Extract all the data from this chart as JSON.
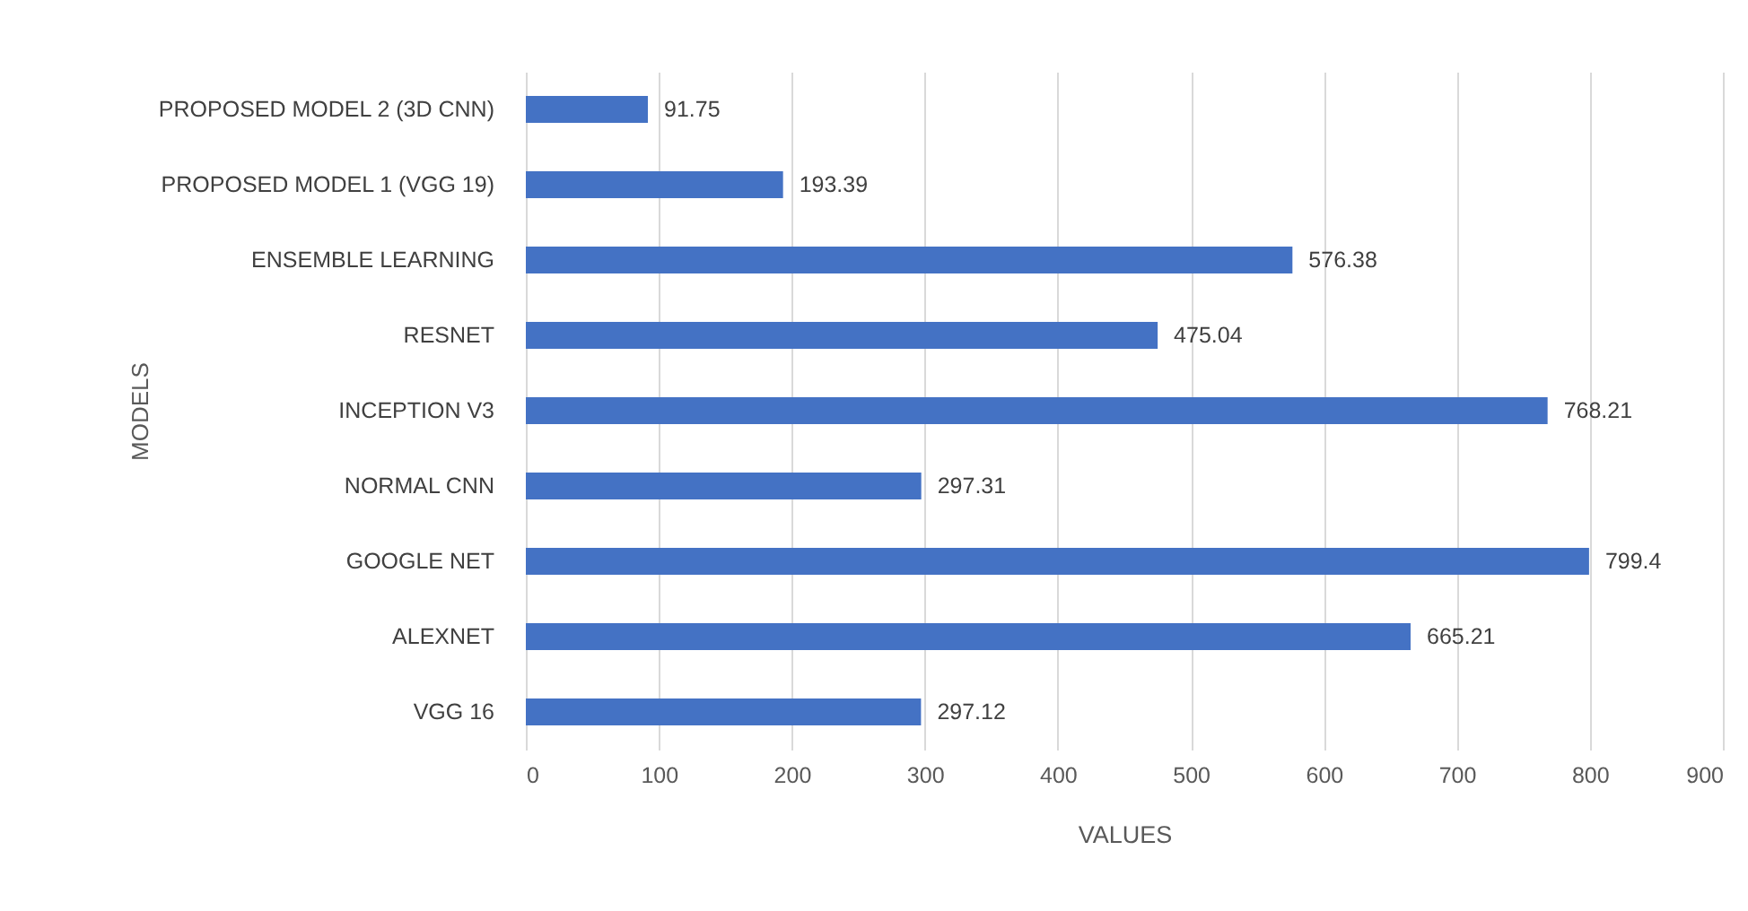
{
  "chart_data": {
    "type": "bar",
    "orientation": "horizontal",
    "xlabel": "VALUES",
    "ylabel": "MODELS",
    "categories": [
      "PROPOSED MODEL  2 (3D CNN)",
      "PROPOSED MODEL  1 (VGG 19)",
      "ENSEMBLE LEARNING",
      "RESNET",
      "INCEPTION V3",
      "NORMAL CNN",
      "GOOGLE NET",
      "ALEXNET",
      "VGG 16"
    ],
    "values": [
      91.75,
      193.39,
      576.38,
      475.04,
      768.21,
      297.31,
      799.4,
      665.21,
      297.12
    ],
    "color": "#4472c4",
    "xlim": [
      0,
      900
    ],
    "xticks": [
      0,
      100,
      200,
      300,
      400,
      500,
      600,
      700,
      800,
      900
    ],
    "grid": "x",
    "data_labels": true
  }
}
